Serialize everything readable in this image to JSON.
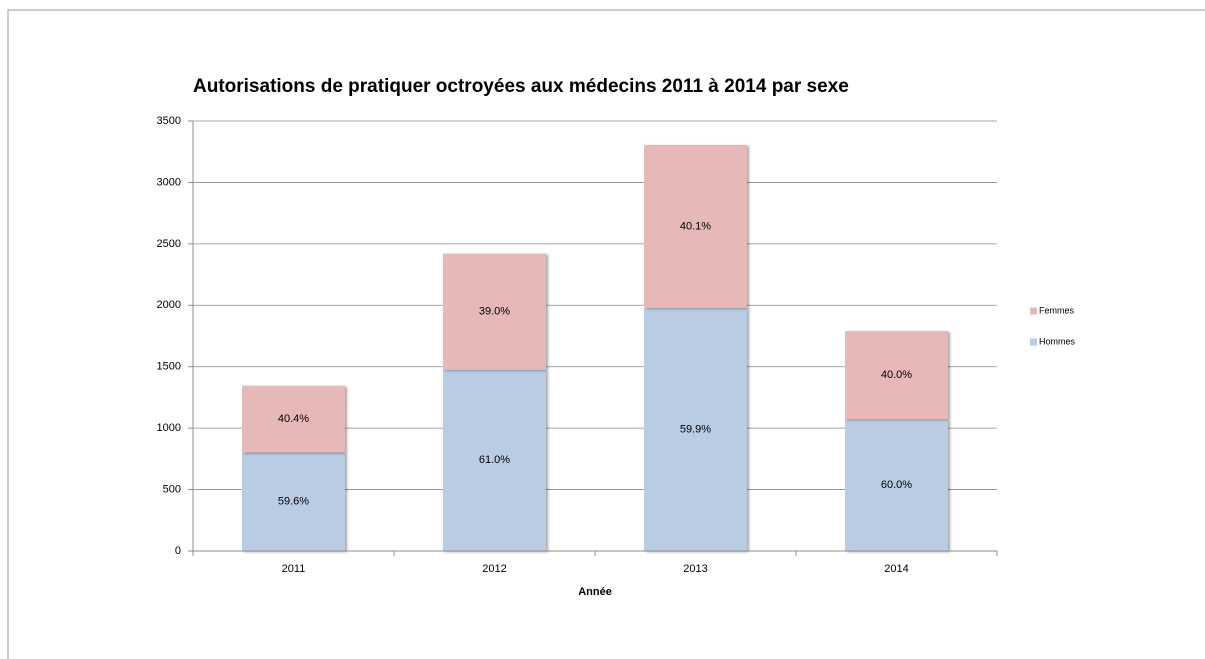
{
  "chart_data": {
    "type": "stacked_bar",
    "title": "Autorisations de pratiquer octroyées aux médecins 2011 à 2014 par sexe",
    "xlabel": "Année",
    "categories": [
      "2011",
      "2012",
      "2013",
      "2014"
    ],
    "series": [
      {
        "name": "Hommes",
        "color": "#b9cce4",
        "values": [
          802,
          1476,
          1980,
          1074
        ],
        "data_labels": [
          "59.6%",
          "61.0%",
          "59.9%",
          "60.0%"
        ]
      },
      {
        "name": "Femmes",
        "color": "#e6b9b8",
        "values": [
          543,
          944,
          1325,
          716
        ],
        "data_labels": [
          "40.4%",
          "39.0%",
          "40.1%",
          "40.0%"
        ]
      }
    ],
    "ylim": [
      0,
      3500
    ],
    "yticks": [
      0,
      500,
      1000,
      1500,
      2000,
      2500,
      3000,
      3500
    ],
    "grid": true,
    "legend": "right"
  }
}
